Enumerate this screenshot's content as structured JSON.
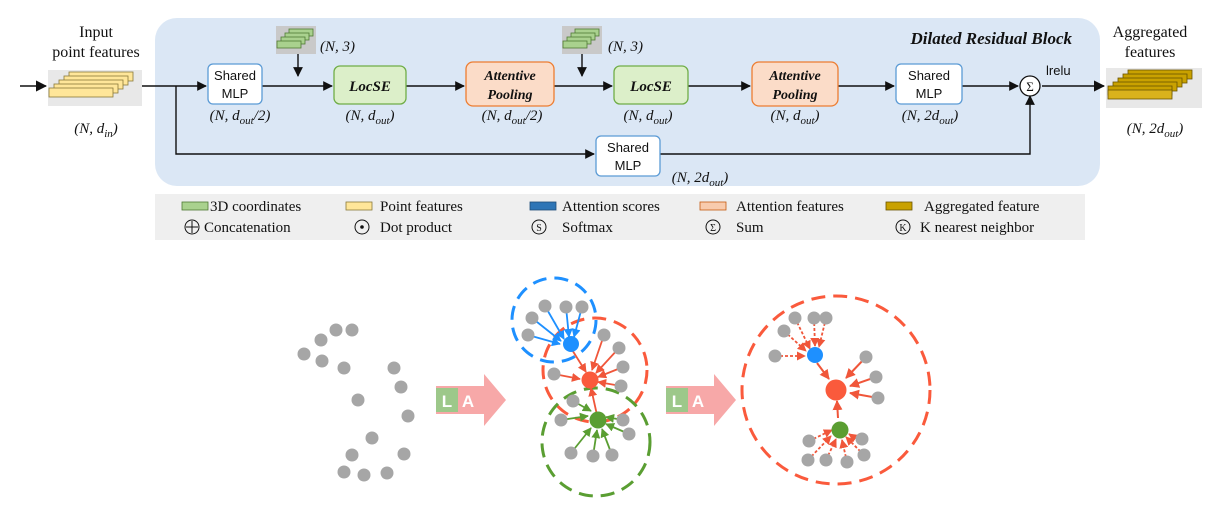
{
  "block_title": "Dilated Residual Block",
  "input": {
    "label_line1": "Input",
    "label_line2": "point features",
    "dim_base": "(N, d",
    "dim_sub": "in",
    "dim_close": ")"
  },
  "output": {
    "label_line1": "Aggregated",
    "label_line2": "features",
    "dim_base": "(N, 2d",
    "dim_sub": "out",
    "dim_close": ")"
  },
  "coords_label": "(N, 3)",
  "boxes": {
    "mlp1": {
      "line1": "Shared",
      "line2": "MLP",
      "dim_base": "(N, d",
      "dim_sub": "out",
      "dim_close": "/2)"
    },
    "locse1": {
      "label": "LocSE",
      "dim_base": "(N, d",
      "dim_sub": "out",
      "dim_close": ")"
    },
    "pool1": {
      "line1": "Attentive",
      "line2": "Pooling",
      "dim_base": "(N, d",
      "dim_sub": "out",
      "dim_close": "/2)"
    },
    "locse2": {
      "label": "LocSE",
      "dim_base": "(N, d",
      "dim_sub": "out",
      "dim_close": ")"
    },
    "pool2": {
      "line1": "Attentive",
      "line2": "Pooling",
      "dim_base": "(N, d",
      "dim_sub": "out",
      "dim_close": ")"
    },
    "mlp2": {
      "line1": "Shared",
      "line2": "MLP",
      "dim_base": "(N, 2d",
      "dim_sub": "out",
      "dim_close": ")"
    },
    "mlp_skip": {
      "line1": "Shared",
      "line2": "MLP",
      "dim_base": "(N, 2d",
      "dim_sub": "out",
      "dim_close": ")"
    }
  },
  "sum_symbol": "Σ",
  "activation_label": "lrelu",
  "legend": [
    {
      "label": "3D coordinates",
      "icon": "green-bar-swatch"
    },
    {
      "label": "Point features",
      "icon": "yellow-bar-swatch"
    },
    {
      "label": "Attention scores",
      "icon": "blue-bar-swatch"
    },
    {
      "label": "Attention features",
      "icon": "peach-bar-swatch"
    },
    {
      "label": "Aggregated feature",
      "icon": "gold-bar-swatch"
    },
    {
      "label": "Concatenation",
      "icon": "circled-plus-icon",
      "symbol": "⊕"
    },
    {
      "label": "Dot product",
      "icon": "circled-dot-icon",
      "symbol": "⊙"
    },
    {
      "label": "Softmax",
      "icon": "circled-s-icon",
      "symbol": "S"
    },
    {
      "label": "Sum",
      "icon": "circled-sigma-icon",
      "symbol": "Σ"
    },
    {
      "label": "K nearest neighbor",
      "icon": "circled-k-icon",
      "symbol": "K"
    }
  ],
  "la_arrow_letters": [
    "L",
    "A"
  ],
  "colors": {
    "block_bg": "#dbe7f5",
    "legend_bg": "#efefef",
    "mlp_border": "#5b9bd5",
    "locse_fill": "#dcefc9",
    "locse_border": "#70ad47",
    "pool_fill": "#fbdcc8",
    "pool_border": "#ed7d31",
    "green_stack": "#a9d18e",
    "yellow_stack": "#ffe699",
    "gold_stack": "#c9a100",
    "blue_point": "#1e90ff",
    "red_point": "#fa5a3c",
    "green_point": "#5a9e32",
    "gray_point": "#a6a6a6",
    "la_green": "#9dc88a",
    "la_pink": "#f7a8a8"
  }
}
